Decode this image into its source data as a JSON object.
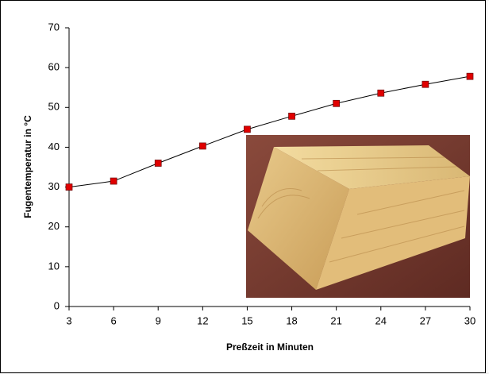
{
  "chart_data": {
    "type": "line",
    "x_label": "Preßzeit in Minuten",
    "y_label": "Fugentemperatur in °C",
    "x": [
      3,
      6,
      9,
      12,
      15,
      18,
      21,
      24,
      27,
      30
    ],
    "series": [
      {
        "color": "#e00000",
        "values": [
          30,
          31.5,
          36,
          40.3,
          44.5,
          47.8,
          51,
          53.6,
          55.8,
          57.8
        ]
      }
    ],
    "xlim": [
      3,
      30
    ],
    "xticks": [
      3,
      6,
      9,
      12,
      15,
      18,
      21,
      24,
      27,
      30
    ],
    "ylim": [
      0,
      70
    ],
    "yticks": [
      0,
      10,
      20,
      30,
      40,
      50,
      60,
      70
    ]
  }
}
